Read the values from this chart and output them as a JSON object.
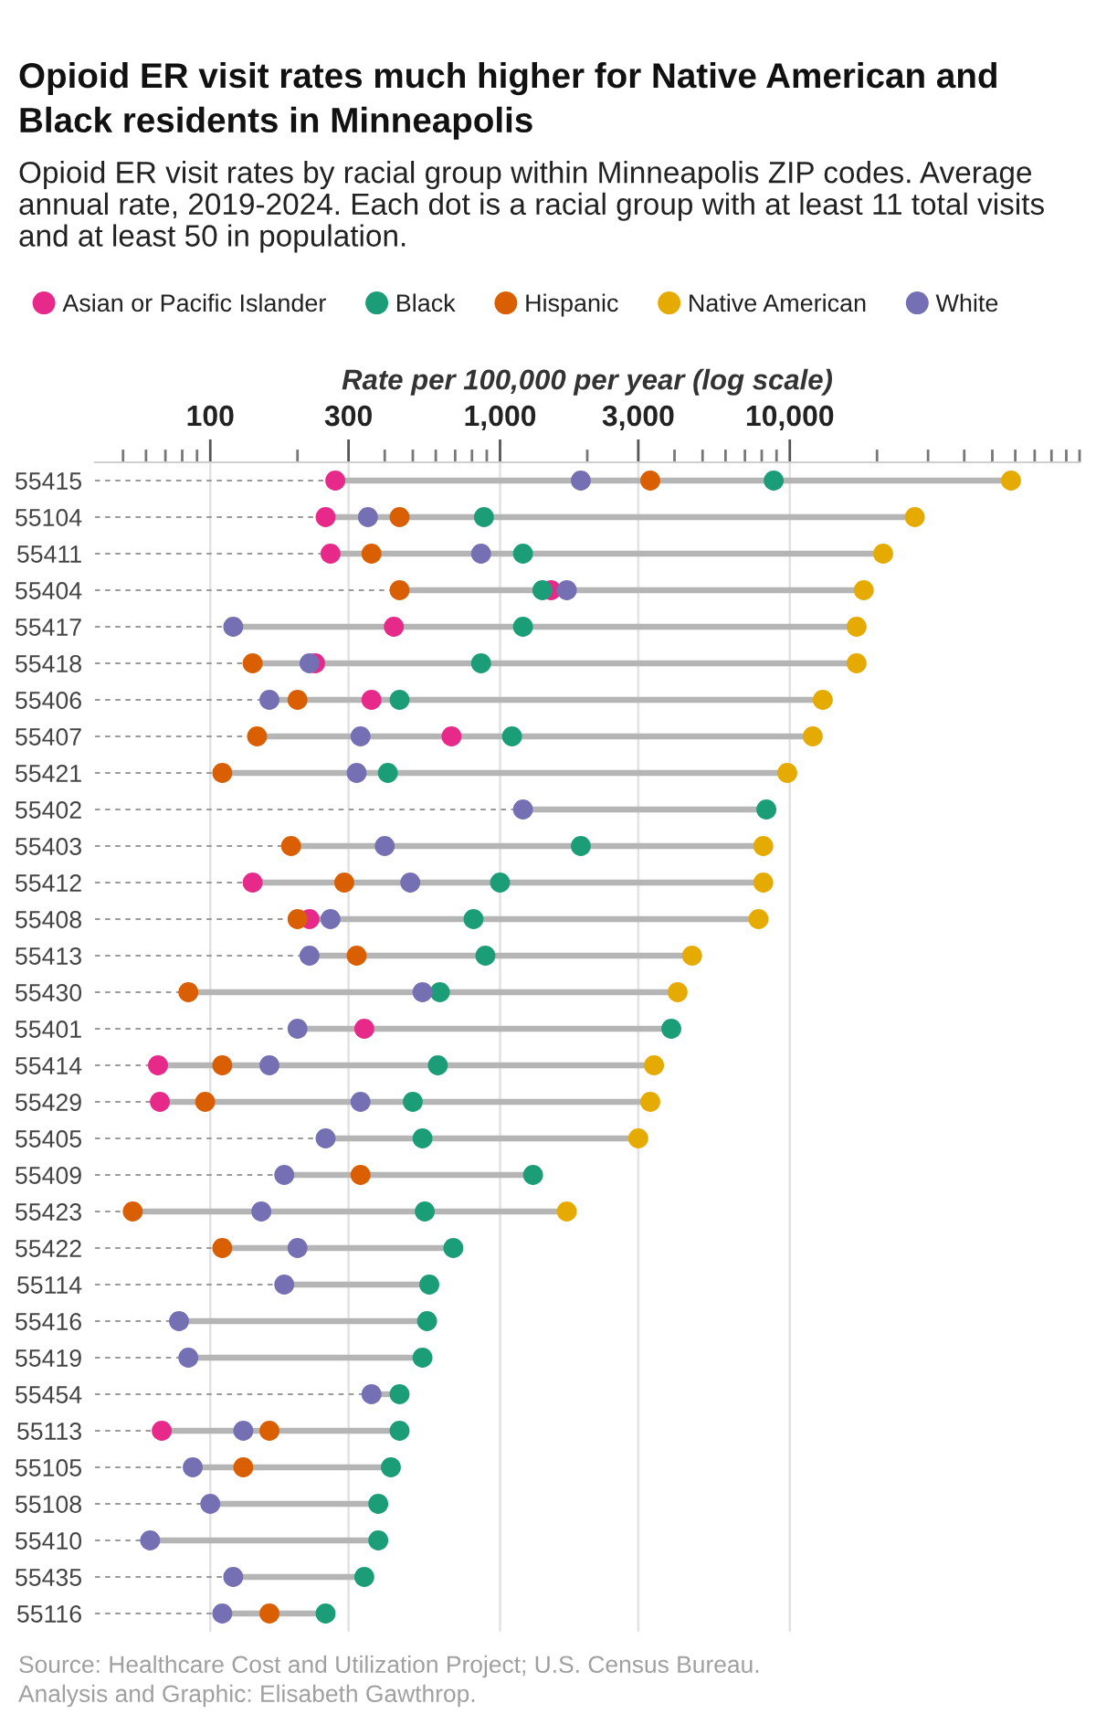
{
  "chart_data": {
    "type": "scatter",
    "orientation": "horizontal",
    "log": "x",
    "grid": "x",
    "legend": "top",
    "marker": "circle",
    "title": "Opioid ER visit rates much higher for Native American and Black residents in Minneapolis",
    "subtitle": "Opioid ER visit rates by racial group within Minneapolis ZIP codes. Average annual rate, 2019-2024. Each dot is a racial group with at least 11 total visits and at least 50 in population.",
    "xlabel": "Rate per 100,000 per year (log scale)",
    "annotations": [
      "Source: Healthcare Cost and Utilization Project; U.S. Census Bureau.",
      "Analysis and Graphic: Elisabeth Gawthrop."
    ],
    "xlim": [
      40,
      100000
    ],
    "xticks": [
      {
        "value": 50,
        "label": null
      },
      {
        "value": 60,
        "label": null
      },
      {
        "value": 70,
        "label": null
      },
      {
        "value": 80,
        "label": null
      },
      {
        "value": 90,
        "label": null
      },
      100,
      {
        "value": 200,
        "label": null
      },
      300,
      {
        "value": 400,
        "label": null
      },
      {
        "value": 500,
        "label": null
      },
      {
        "value": 600,
        "label": null
      },
      {
        "value": 700,
        "label": null
      },
      {
        "value": 800,
        "label": null
      },
      {
        "value": 900,
        "label": null
      },
      {
        "value": 1000,
        "label": "1,000"
      },
      {
        "value": 2000,
        "label": null
      },
      {
        "value": 3000,
        "label": "3,000"
      },
      {
        "value": 4000,
        "label": null
      },
      {
        "value": 5000,
        "label": null
      },
      {
        "value": 6000,
        "label": null
      },
      {
        "value": 7000,
        "label": null
      },
      {
        "value": 8000,
        "label": null
      },
      {
        "value": 9000,
        "label": null
      },
      {
        "value": 10000,
        "label": "10,000"
      },
      {
        "value": 20000,
        "label": null
      },
      {
        "value": 30000,
        "label": null
      },
      {
        "value": 40000,
        "label": null
      },
      {
        "value": 50000,
        "label": null
      },
      {
        "value": 60000,
        "label": null
      },
      {
        "value": 70000,
        "label": null
      },
      {
        "value": 80000,
        "label": null
      },
      {
        "value": 90000,
        "label": null
      },
      {
        "value": 100000,
        "label": null
      }
    ],
    "categories": [
      "55415",
      "55104",
      "55411",
      "55404",
      "55417",
      "55418",
      "55406",
      "55407",
      "55421",
      "55402",
      "55403",
      "55412",
      "55408",
      "55413",
      "55430",
      "55401",
      "55414",
      "55429",
      "55405",
      "55409",
      "55423",
      "55422",
      "55114",
      "55416",
      "55419",
      "55454",
      "55113",
      "55105",
      "55108",
      "55410",
      "55435",
      "55116"
    ],
    "series": [
      {
        "name": "Asian or Pacific Islander",
        "color": "#e7298a",
        "values": [
          270,
          250,
          260,
          1500,
          430,
          230,
          360,
          680,
          null,
          null,
          null,
          140,
          220,
          null,
          null,
          340,
          66,
          67,
          null,
          null,
          null,
          null,
          null,
          null,
          null,
          null,
          68,
          null,
          null,
          null,
          null,
          null
        ]
      },
      {
        "name": "Black",
        "color": "#1b9e77",
        "values": [
          8800,
          880,
          1200,
          1400,
          1200,
          860,
          450,
          1100,
          410,
          8300,
          1900,
          1000,
          810,
          890,
          620,
          3900,
          610,
          500,
          540,
          1300,
          550,
          690,
          570,
          560,
          540,
          450,
          450,
          420,
          380,
          380,
          340,
          250
        ]
      },
      {
        "name": "Hispanic",
        "color": "#d95f02",
        "values": [
          3300,
          450,
          360,
          450,
          null,
          140,
          200,
          145,
          110,
          null,
          190,
          290,
          200,
          320,
          84,
          null,
          110,
          96,
          null,
          330,
          54,
          110,
          null,
          null,
          null,
          null,
          160,
          130,
          null,
          null,
          null,
          160
        ]
      },
      {
        "name": "Native American",
        "color": "#e6ab02",
        "values": [
          58000,
          27000,
          21000,
          18000,
          17000,
          17000,
          13000,
          12000,
          9800,
          null,
          8100,
          8100,
          7800,
          4600,
          4100,
          null,
          3400,
          3300,
          3000,
          null,
          1700,
          null,
          null,
          null,
          null,
          null,
          null,
          null,
          null,
          null,
          null,
          null
        ]
      },
      {
        "name": "White",
        "color": "#7570b3",
        "values": [
          1900,
          350,
          860,
          1700,
          120,
          220,
          160,
          330,
          320,
          1200,
          400,
          490,
          260,
          220,
          540,
          200,
          160,
          330,
          250,
          180,
          150,
          200,
          180,
          78,
          84,
          360,
          130,
          87,
          100,
          62,
          120,
          110
        ]
      }
    ]
  }
}
